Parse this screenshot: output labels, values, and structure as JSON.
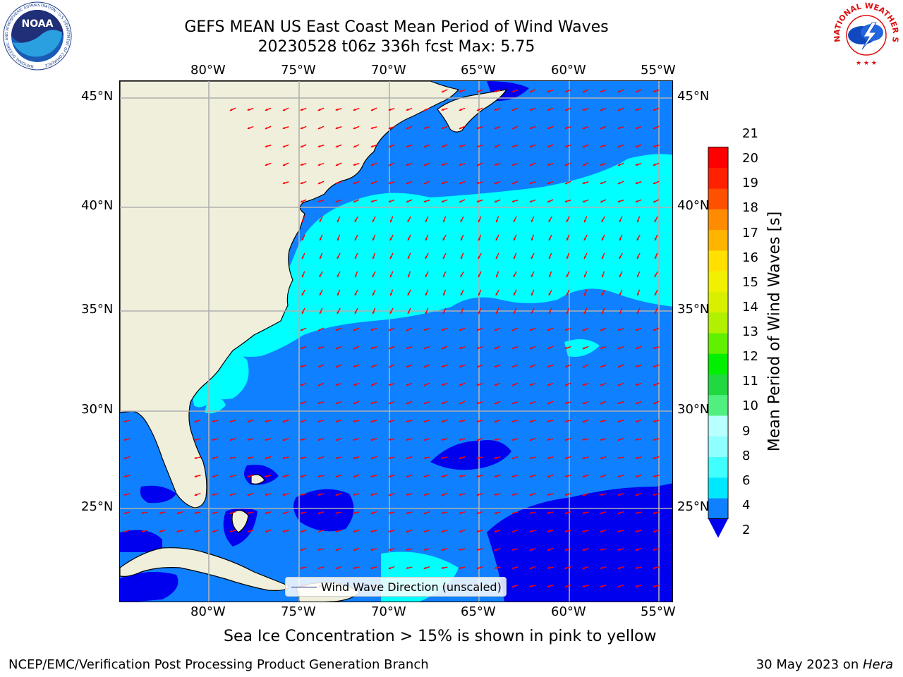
{
  "title": {
    "line1": "GEFS MEAN US East Coast Mean Period of Wind Waves",
    "line2": "20230528 t06z 336h fcst   Max: 5.75"
  },
  "map": {
    "lon_labels": [
      "80°W",
      "75°W",
      "70°W",
      "65°W",
      "60°W",
      "55°W"
    ],
    "lat_labels": [
      "45°N",
      "40°N",
      "35°N",
      "30°N",
      "25°N"
    ],
    "colors": {
      "land": "#efefdc",
      "deep_blue": "#0000ee",
      "medium_blue": "#0f80ff",
      "cyan": "#00ffff",
      "arrow": "#ff0000",
      "grid": "#b0b0b0"
    }
  },
  "legend": {
    "label": "Wind Wave Direction (unscaled)"
  },
  "colorbar": {
    "title": "Mean Period of Wind Waves [s]",
    "ticks": [
      "2",
      "4",
      "6",
      "8",
      "9",
      "10",
      "11",
      "12",
      "13",
      "14",
      "15",
      "16",
      "17",
      "18",
      "19",
      "20",
      "21"
    ],
    "segment_colors": [
      "#0f80ff",
      "#00e8ff",
      "#40ffff",
      "#90ffff",
      "#b8ffff",
      "#50f080",
      "#20d840",
      "#00f000",
      "#60f000",
      "#b0f000",
      "#d8f000",
      "#f0f000",
      "#ffe000",
      "#ffb400",
      "#ff8c00",
      "#ff5000",
      "#ff2000",
      "#ff0000"
    ],
    "extend_color": "#0000ee"
  },
  "note": "Sea Ice Concentration > 15% is shown in pink to yellow",
  "footer": {
    "left": "NCEP/EMC/Verification Post Processing Product Generation Branch",
    "date": "30 May 2023 on ",
    "machine": "Hera"
  },
  "logos": {
    "noaa_text": "NOAA",
    "noaa_ring": "NATIONAL OCEANIC AND ATMOSPHERIC ADMINISTRATION · U.S. DEPARTMENT OF COMMERCE",
    "nws_ring": "NATIONAL WEATHER SERVICE"
  }
}
